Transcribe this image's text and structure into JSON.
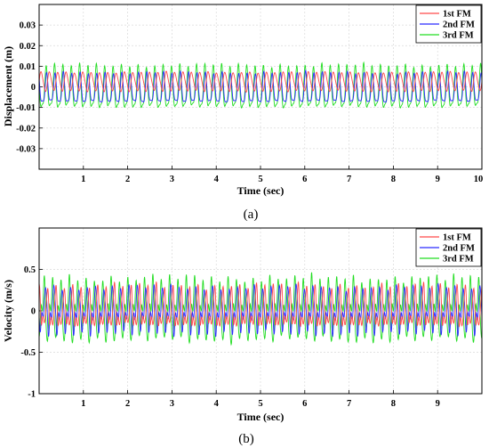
{
  "colors": {
    "fm1": "#ff4a4a",
    "fm2": "#2a2aff",
    "fm3": "#22dd22",
    "grid": "#d9d9d9"
  },
  "chart_data": [
    {
      "type": "line",
      "caption": "(a)",
      "xlabel": "Time (sec)",
      "ylabel": "Displacement (m)",
      "xlim": [
        0,
        10
      ],
      "ylim": [
        -0.04,
        0.04
      ],
      "xticks": [
        "1",
        "2",
        "3",
        "4",
        "5",
        "6",
        "7",
        "8",
        "9",
        "10"
      ],
      "yticks": [
        "0.03",
        "0.02",
        "0.01",
        "0",
        "-0.01",
        "-0.02",
        "-0.03"
      ],
      "grid": true,
      "legend_position": "top-right",
      "series": [
        {
          "name": "1st FM",
          "approx_frequency_hz": 5.3,
          "approx_max": 0.009,
          "approx_min": -0.004
        },
        {
          "name": "2nd FM",
          "approx_frequency_hz": 5.3,
          "approx_max": 0.008,
          "approx_min": -0.012
        },
        {
          "name": "3rd FM",
          "approx_frequency_hz": 5.3,
          "approx_max": 0.012,
          "approx_min": -0.016
        }
      ]
    },
    {
      "type": "line",
      "caption": "(b)",
      "xlabel": "Time (sec)",
      "ylabel": "Velocity (m/s)",
      "xlim": [
        0,
        10
      ],
      "ylim": [
        -1,
        1
      ],
      "xticks": [
        "1",
        "2",
        "3",
        "4",
        "5",
        "6",
        "7",
        "8",
        "9"
      ],
      "yticks": [
        "0.5",
        "0",
        "-0.5",
        "-1"
      ],
      "grid": true,
      "legend_position": "top-right",
      "series": [
        {
          "name": "1st FM",
          "approx_amplitude": 0.35
        },
        {
          "name": "2nd FM",
          "approx_amplitude": 0.38
        },
        {
          "name": "3rd FM",
          "approx_amplitude": 0.5
        }
      ]
    }
  ]
}
